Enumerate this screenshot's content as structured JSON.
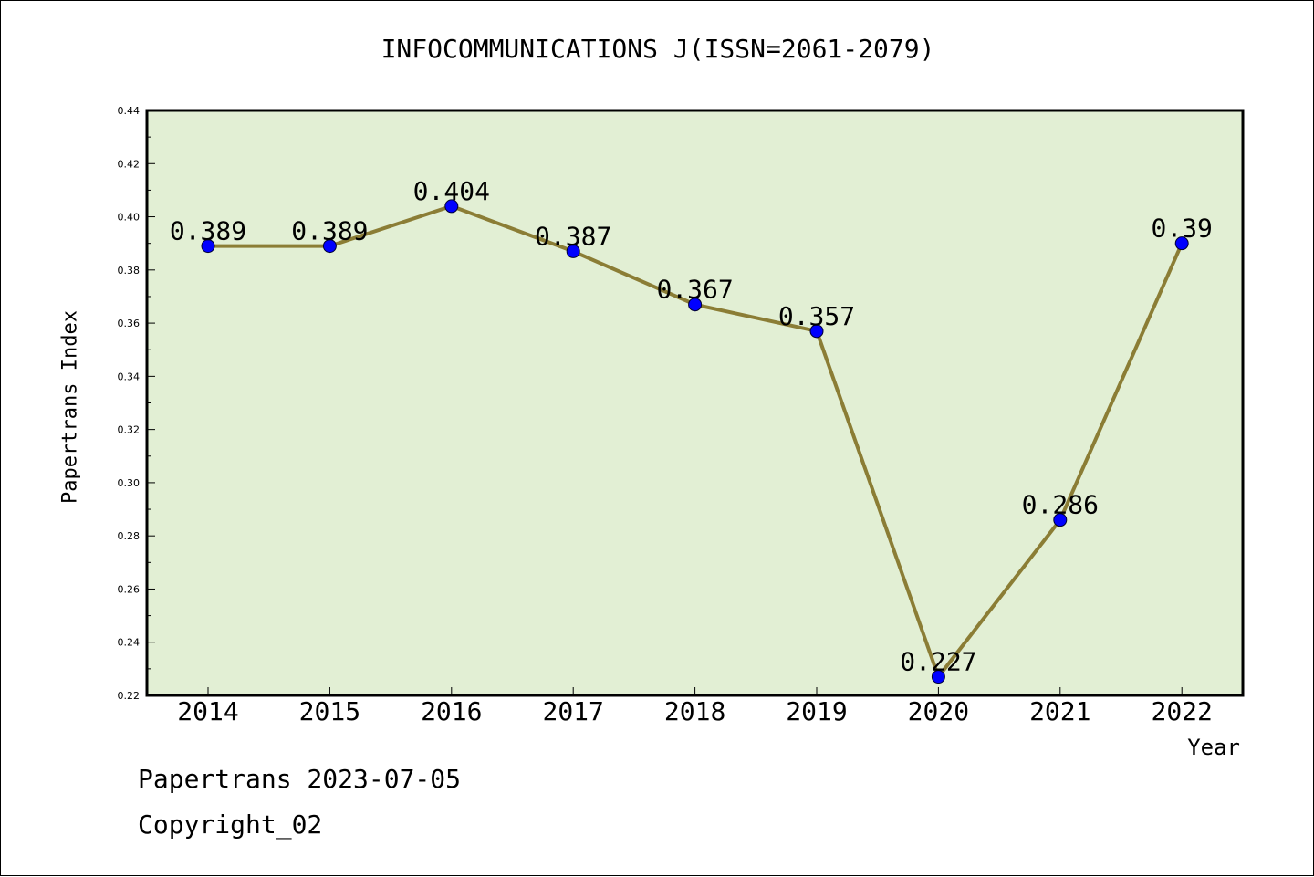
{
  "footer": {
    "line1": "Papertrans 2023-07-05",
    "line2": "Copyright_02"
  },
  "chart_data": {
    "type": "line",
    "title": "INFOCOMMUNICATIONS J(ISSN=2061-2079)",
    "xlabel": "Year",
    "ylabel": "Papertrans Index",
    "categories": [
      "2014",
      "2015",
      "2016",
      "2017",
      "2018",
      "2019",
      "2020",
      "2021",
      "2022"
    ],
    "values": [
      0.389,
      0.389,
      0.404,
      0.387,
      0.367,
      0.357,
      0.227,
      0.286,
      0.39
    ],
    "data_labels": [
      "0.389",
      "0.389",
      "0.404",
      "0.387",
      "0.367",
      "0.357",
      "0.227",
      "0.286",
      "0.39"
    ],
    "ylim": [
      0.22,
      0.44
    ],
    "yticks": [
      "0.22",
      "0.24",
      "0.26",
      "0.28",
      "0.30",
      "0.32",
      "0.34",
      "0.36",
      "0.38",
      "0.40",
      "0.42",
      "0.44"
    ],
    "grid": false,
    "legend": "none",
    "colors": {
      "plot_background": "#e2efd4",
      "line": "#8b7d35",
      "marker": "#0000ff"
    }
  }
}
